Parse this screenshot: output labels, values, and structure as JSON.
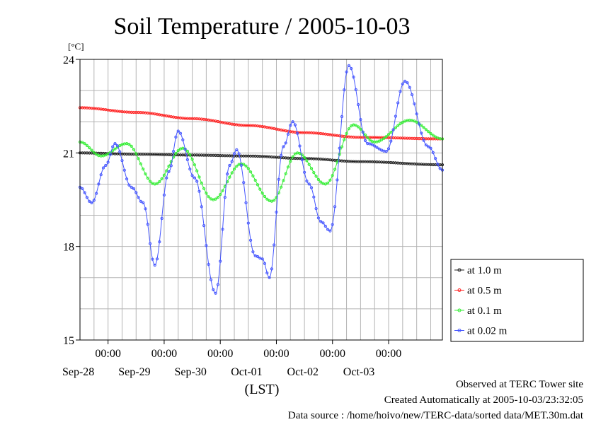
{
  "chart_data": {
    "type": "line",
    "title": "Soil Temperature / 2005-10-03",
    "ylabel": "[°C]",
    "xlabel": "(LST)",
    "ylim": [
      15,
      24
    ],
    "y_ticks": [
      "15",
      "18",
      "21",
      "24"
    ],
    "xlim": [
      "2005-09-27T12:00",
      "2005-10-03T23:00"
    ],
    "x_tick_time_label": "00:00",
    "x_day_labels": [
      "Sep-28",
      "Sep-29",
      "Sep-30",
      "Oct-01",
      "Oct-02",
      "Oct-03"
    ],
    "grid": true,
    "legend_position": "right",
    "series": [
      {
        "name": "at 1.0 m",
        "color": "#202020",
        "points": [
          [
            "2005-09-27T12:00",
            21.0
          ],
          [
            "2005-09-28T12:00",
            20.96
          ],
          [
            "2005-09-29T12:00",
            20.93
          ],
          [
            "2005-09-30T12:00",
            20.9
          ],
          [
            "2005-10-01T12:00",
            20.82
          ],
          [
            "2005-10-02T12:00",
            20.72
          ],
          [
            "2005-10-03T23:00",
            20.62
          ]
        ]
      },
      {
        "name": "at 0.5 m",
        "color": "#ff2020",
        "points": [
          [
            "2005-09-27T12:00",
            22.45
          ],
          [
            "2005-09-28T12:00",
            22.3
          ],
          [
            "2005-09-29T12:00",
            22.1
          ],
          [
            "2005-09-30T12:00",
            21.88
          ],
          [
            "2005-10-01T12:00",
            21.65
          ],
          [
            "2005-10-02T12:00",
            21.5
          ],
          [
            "2005-10-03T23:00",
            21.45
          ]
        ]
      },
      {
        "name": "at 0.1 m",
        "color": "#33ee33",
        "points": [
          [
            "2005-09-27T12:00",
            21.35
          ],
          [
            "2005-09-27T21:00",
            20.9
          ],
          [
            "2005-09-28T08:00",
            21.3
          ],
          [
            "2005-09-28T20:00",
            20.0
          ],
          [
            "2005-09-29T08:00",
            21.15
          ],
          [
            "2005-09-29T21:00",
            19.5
          ],
          [
            "2005-09-30T09:00",
            20.65
          ],
          [
            "2005-09-30T22:00",
            19.45
          ],
          [
            "2005-10-01T09:00",
            21.0
          ],
          [
            "2005-10-01T21:00",
            20.0
          ],
          [
            "2005-10-02T09:00",
            21.9
          ],
          [
            "2005-10-02T18:00",
            21.35
          ],
          [
            "2005-10-03T09:00",
            22.05
          ],
          [
            "2005-10-03T23:00",
            21.45
          ]
        ]
      },
      {
        "name": "at 0.02 m",
        "color": "#4455ff",
        "points": [
          [
            "2005-09-27T12:00",
            19.9
          ],
          [
            "2005-09-27T17:00",
            19.4
          ],
          [
            "2005-09-27T23:00",
            20.6
          ],
          [
            "2005-09-28T03:00",
            21.3
          ],
          [
            "2005-09-28T10:00",
            19.9
          ],
          [
            "2005-09-28T15:00",
            19.4
          ],
          [
            "2005-09-28T20:00",
            17.4
          ],
          [
            "2005-09-29T02:00",
            20.4
          ],
          [
            "2005-09-29T06:00",
            21.7
          ],
          [
            "2005-09-29T13:00",
            20.2
          ],
          [
            "2005-09-29T22:00",
            16.5
          ],
          [
            "2005-09-30T04:00",
            20.6
          ],
          [
            "2005-09-30T07:00",
            21.1
          ],
          [
            "2005-09-30T15:00",
            17.7
          ],
          [
            "2005-09-30T18:00",
            17.6
          ],
          [
            "2005-09-30T21:00",
            17.0
          ],
          [
            "2005-10-01T03:00",
            21.2
          ],
          [
            "2005-10-01T07:00",
            22.0
          ],
          [
            "2005-10-01T14:00",
            20.0
          ],
          [
            "2005-10-01T19:00",
            18.8
          ],
          [
            "2005-10-01T23:00",
            18.5
          ],
          [
            "2005-10-02T07:00",
            23.8
          ],
          [
            "2005-10-02T15:00",
            21.3
          ],
          [
            "2005-10-02T23:00",
            21.05
          ],
          [
            "2005-10-03T07:00",
            23.3
          ],
          [
            "2005-10-03T17:00",
            21.2
          ],
          [
            "2005-10-03T23:00",
            20.45
          ]
        ]
      }
    ]
  },
  "footer": {
    "line1": "Observed at TERC Tower site",
    "line2": "Created Automatically at 2005-10-03/23:32:05",
    "line3": "Data source : /home/hoivo/new/TERC-data/sorted  data/MET.30m.dat"
  }
}
